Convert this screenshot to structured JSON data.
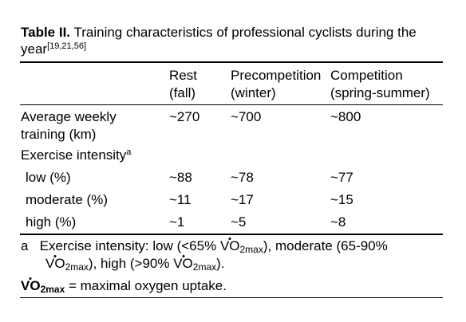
{
  "caption": {
    "label": "Table II.",
    "text": " Training characteristics of professional cyclists during the year",
    "refs": "[19,21,56]"
  },
  "columns": [
    {
      "line1": "Rest",
      "line2": "(fall)"
    },
    {
      "line1": "Precompetition",
      "line2": "(winter)"
    },
    {
      "line1": "Competition",
      "line2": "(spring-summer)"
    }
  ],
  "rows": {
    "weekly": {
      "label1": "Average weekly",
      "label2": "training (km)",
      "values": [
        "~270",
        "~700",
        "~800"
      ]
    },
    "intensity_header": {
      "label": "Exercise intensity",
      "marker": "a"
    },
    "low": {
      "label": "low (%)",
      "values": [
        "~88",
        "~78",
        "~77"
      ]
    },
    "moderate": {
      "label": "moderate (%)",
      "values": [
        "~11",
        "~17",
        "~15"
      ]
    },
    "high": {
      "label": "high (%)",
      "values": [
        "~1",
        "~5",
        "~8"
      ]
    }
  },
  "footnotes": {
    "a": {
      "marker": "a",
      "line1_part1": "Exercise intensity: low (<65% ",
      "vo2": "VO",
      "sub": "2max",
      "line1_part2": "), moderate (65-90%",
      "line2_part1": "), high (>90% ",
      "line2_part2": ")."
    },
    "def": {
      "vo2": "VO",
      "sub": "2max",
      "text": " = maximal oxygen uptake."
    }
  }
}
